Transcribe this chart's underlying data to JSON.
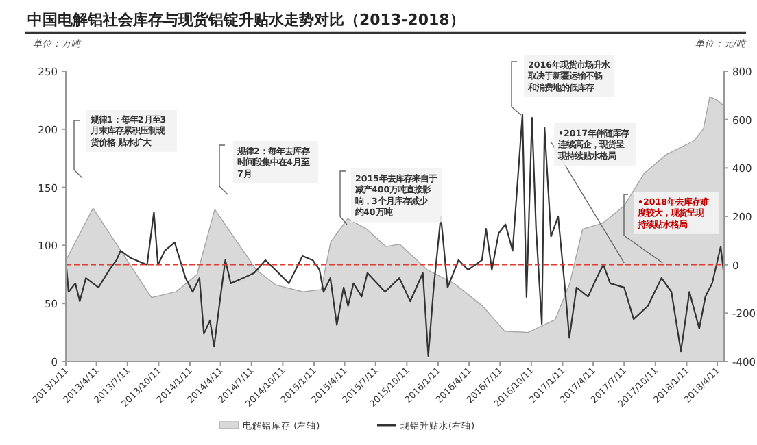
{
  "chart_data": {
    "type": "line",
    "title": "中国电解铝社会库存与现货铝锭升贴水走势对比（2013-2018）",
    "ylabel": "单位：万吨",
    "y2label": "单位：元/吨",
    "xlim": [
      "2013-01-11",
      "2018-05-01"
    ],
    "xticks": [
      {
        "value": "2013-01-11",
        "label": "2013/1/11"
      },
      {
        "value": "2013-04-11",
        "label": "2013/4/11"
      },
      {
        "value": "2013-07-11",
        "label": "2013/7/11"
      },
      {
        "value": "2013-10-11",
        "label": "2013/10/11"
      },
      {
        "value": "2014-01-11",
        "label": "2014/1/11"
      },
      {
        "value": "2014-04-11",
        "label": "2014/4/11"
      },
      {
        "value": "2014-07-11",
        "label": "2014/7/11"
      },
      {
        "value": "2014-10-11",
        "label": "2014/10/11"
      },
      {
        "value": "2015-01-11",
        "label": "2015/1/11"
      },
      {
        "value": "2015-04-11",
        "label": "2015/4/11"
      },
      {
        "value": "2015-07-11",
        "label": "2015/7/11"
      },
      {
        "value": "2015-10-11",
        "label": "2015/10/11"
      },
      {
        "value": "2016-01-11",
        "label": "2016/1/11"
      },
      {
        "value": "2016-04-11",
        "label": "2016/4/11"
      },
      {
        "value": "2016-07-11",
        "label": "2016/7/11"
      },
      {
        "value": "2016-10-11",
        "label": "2016/10/11"
      },
      {
        "value": "2017-01-11",
        "label": "2017/1/11"
      },
      {
        "value": "2017-04-11",
        "label": "2017/4/11"
      },
      {
        "value": "2017-07-11",
        "label": "2017/7/11"
      },
      {
        "value": "2017-10-11",
        "label": "2017/10/11"
      },
      {
        "value": "2018-01-11",
        "label": "2018/1/11"
      },
      {
        "value": "2018-04-11",
        "label": "2018/4/11"
      }
    ],
    "ylim": [
      0,
      250
    ],
    "yticks": [
      0,
      50,
      100,
      150,
      200,
      250
    ],
    "y2lim": [
      -400,
      800
    ],
    "y2ticks": [
      -400,
      -200,
      0,
      200,
      400,
      600,
      800
    ],
    "grid": false,
    "legend": "bottom",
    "ref_lines": [
      {
        "axis": "y2",
        "value": 0,
        "color": "#e03c31",
        "line_style": "dashed"
      }
    ],
    "annotations": [
      "规律1：每年2月至3月末库存累积压制现货价格 贴水扩大",
      "规律2：每年去库存时间段集中在4月至7月",
      "2015年去库存来自于减产400万吨直接影响，3个月库存减少约40万吨",
      "2016年现货市场升水取决于新疆运输不畅和消费地的低库存",
      {
        "text": "•2017年伴随库存连续高企，现货呈现持续贴水格局",
        "x": "2017-07-11",
        "y": 85
      },
      {
        "text": "•2018年去库存难度较大，现货呈现持续贴水格局",
        "x": "2017-11-01",
        "y": 85
      }
    ],
    "series": [
      {
        "name": "电解铝库存 (左轴)",
        "type": "area",
        "color": "#d9d9d9",
        "x": [
          "2013-01-11",
          "2013-04-01",
          "2013-09-20",
          "2013-12-01",
          "2014-02-01",
          "2014-03-25",
          "2014-07-25",
          "2014-09-20",
          "2014-12-10",
          "2015-02-01",
          "2015-03-01",
          "2015-04-20",
          "2015-06-15",
          "2015-08-10",
          "2015-09-20",
          "2015-12-10",
          "2016-02-28",
          "2016-05-20",
          "2016-07-25",
          "2016-10-01",
          "2016-12-20",
          "2017-02-01",
          "2017-03-11",
          "2017-05-08",
          "2017-07-11",
          "2017-09-08",
          "2017-11-11",
          "2018-02-01",
          "2018-03-01",
          "2018-03-20",
          "2018-04-11",
          "2018-05-01"
        ],
        "values": [
          87,
          132,
          55,
          60,
          75,
          131,
          79,
          66,
          60,
          62,
          103,
          123,
          114,
          99,
          101,
          79,
          67,
          48,
          26,
          25,
          36,
          67,
          114,
          119,
          134,
          162,
          178,
          190,
          200,
          228,
          225,
          220
        ]
      },
      {
        "name": "现铝升贴水(右轴)",
        "axis": "y2",
        "color": "#333333",
        "x": [
          "2013-01-11",
          "2013-01-19",
          "2013-02-08",
          "2013-02-21",
          "2013-03-11",
          "2013-04-17",
          "2013-05-19",
          "2013-06-09",
          "2013-06-21",
          "2013-07-19",
          "2013-09-07",
          "2013-09-27",
          "2013-10-09",
          "2013-10-29",
          "2013-11-27",
          "2013-12-17",
          "2013-12-29",
          "2014-01-19",
          "2014-02-08",
          "2014-02-21",
          "2014-03-11",
          "2014-03-23",
          "2014-04-09",
          "2014-04-25",
          "2014-05-11",
          "2014-06-17",
          "2014-07-19",
          "2014-08-21",
          "2014-09-19",
          "2014-10-29",
          "2014-12-08",
          "2015-01-07",
          "2015-01-27",
          "2015-02-08",
          "2015-02-28",
          "2015-03-19",
          "2015-04-08",
          "2015-04-21",
          "2015-05-07",
          "2015-05-31",
          "2015-06-17",
          "2015-08-08",
          "2015-09-19",
          "2015-10-21",
          "2015-11-27",
          "2015-12-13",
          "2015-12-29",
          "2016-01-19",
          "2016-02-08",
          "2016-03-11",
          "2016-04-08",
          "2016-05-19",
          "2016-05-31",
          "2016-06-17",
          "2016-07-07",
          "2016-07-27",
          "2016-08-17",
          "2016-09-15",
          "2016-09-27",
          "2016-10-13",
          "2016-10-25",
          "2016-11-11",
          "2016-11-19",
          "2016-12-08",
          "2016-12-29",
          "2017-01-19",
          "2017-01-31",
          "2017-02-21",
          "2017-03-27",
          "2017-04-21",
          "2017-05-11",
          "2017-05-31",
          "2017-07-11",
          "2017-08-08",
          "2017-09-19",
          "2017-10-29",
          "2017-11-27",
          "2017-12-25",
          "2018-01-19",
          "2018-02-17",
          "2018-03-07",
          "2018-03-27",
          "2018-04-21",
          "2018-04-29"
        ],
        "values": [
          18,
          -112,
          -77,
          -151,
          -55,
          -94,
          -21,
          19,
          58,
          29,
          0,
          217,
          0,
          58,
          92,
          0,
          -55,
          -112,
          -55,
          -285,
          -230,
          -338,
          -151,
          19,
          -77,
          -55,
          -34,
          19,
          -21,
          -77,
          36,
          19,
          -21,
          -112,
          -55,
          -249,
          -94,
          -170,
          -77,
          -132,
          -34,
          -112,
          -55,
          -151,
          -34,
          -377,
          -94,
          200,
          -94,
          19,
          -21,
          19,
          149,
          -21,
          130,
          167,
          58,
          620,
          -134,
          607,
          149,
          -245,
          567,
          117,
          200,
          -112,
          -302,
          -94,
          -132,
          -55,
          0,
          -77,
          -94,
          -225,
          -170,
          -55,
          -112,
          -358,
          -112,
          -264,
          -132,
          -77,
          75,
          -21
        ]
      }
    ]
  }
}
